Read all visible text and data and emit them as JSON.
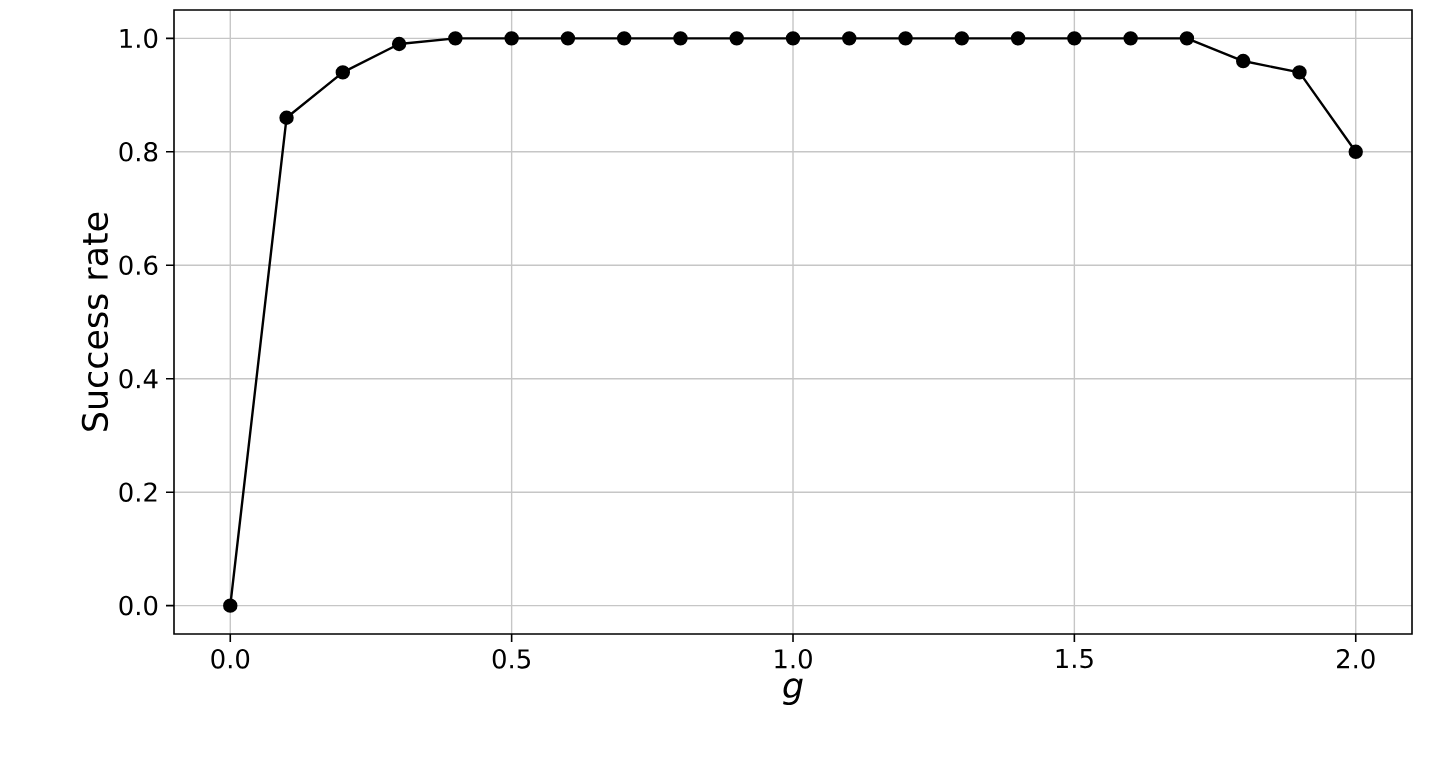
{
  "chart_data": {
    "type": "line",
    "xlabel": "g",
    "ylabel": "Success rate",
    "x": [
      0.0,
      0.1,
      0.2,
      0.3,
      0.4,
      0.5,
      0.6,
      0.7,
      0.8,
      0.9,
      1.0,
      1.1,
      1.2,
      1.3,
      1.4,
      1.5,
      1.6,
      1.7,
      1.8,
      1.9,
      2.0
    ],
    "series": [
      {
        "color": "#000000",
        "values": [
          0.0,
          0.86,
          0.94,
          0.99,
          1.0,
          1.0,
          1.0,
          1.0,
          1.0,
          1.0,
          1.0,
          1.0,
          1.0,
          1.0,
          1.0,
          1.0,
          1.0,
          1.0,
          0.96,
          0.94,
          0.8
        ]
      }
    ],
    "xlim": [
      -0.1,
      2.1
    ],
    "ylim": [
      -0.05,
      1.05
    ],
    "xticks": [
      {
        "value": 0,
        "label": "0.0"
      },
      0.5,
      {
        "value": 1,
        "label": "1.0"
      },
      1.5,
      {
        "value": 2,
        "label": "2.0"
      }
    ],
    "yticks": [
      {
        "value": 0,
        "label": "0.0"
      },
      0.2,
      0.4,
      0.6,
      0.8,
      {
        "value": 1,
        "label": "1.0"
      }
    ],
    "grid": true,
    "marker": "circle",
    "line_style": "solid"
  }
}
